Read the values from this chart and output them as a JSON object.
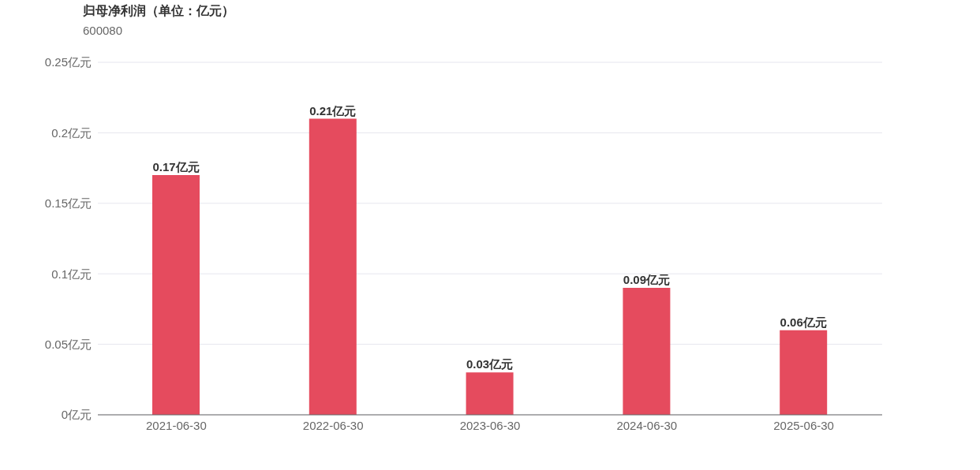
{
  "chart_data": {
    "type": "bar",
    "title": "归母净利润（单位：亿元）",
    "subtitle": "600080",
    "categories": [
      "2021-06-30",
      "2022-06-30",
      "2023-06-30",
      "2024-06-30",
      "2025-06-30"
    ],
    "values": [
      0.17,
      0.21,
      0.03,
      0.09,
      0.06
    ],
    "value_labels": [
      "0.17亿元",
      "0.21亿元",
      "0.03亿元",
      "0.09亿元",
      "0.06亿元"
    ],
    "color": "#e54b5e",
    "ylim": [
      0,
      0.25
    ],
    "yticks": [
      {
        "value": 0,
        "label": "0亿元"
      },
      {
        "value": 0.05,
        "label": "0.05亿元"
      },
      {
        "value": 0.1,
        "label": "0.1亿元"
      },
      {
        "value": 0.15,
        "label": "0.15亿元"
      },
      {
        "value": 0.2,
        "label": "0.2亿元"
      },
      {
        "value": 0.25,
        "label": "0.25亿元"
      }
    ],
    "grid": "y"
  }
}
